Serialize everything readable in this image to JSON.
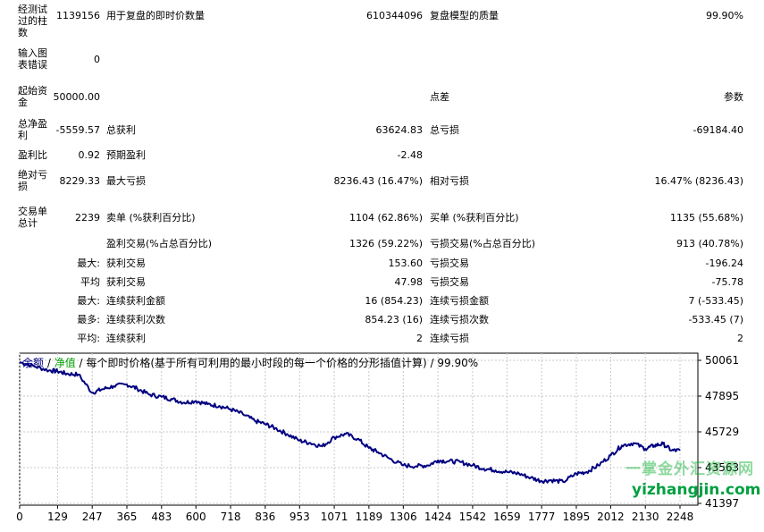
{
  "report": {
    "rows": [
      {
        "label": "经测试过的柱数",
        "value": "1139156",
        "mid_label": "用于复盘的即时价数量",
        "mid_value": "610344096",
        "right_label": "复盘模型的质量",
        "right_value": "99.90%"
      },
      {
        "label": "输入图表错误",
        "value": "0"
      },
      {
        "label": "起始资金",
        "value": "50000.00",
        "right_label": "点差",
        "right_value": "参数"
      },
      {
        "label": "总净盈利",
        "value": "-5559.57",
        "mid_label": "总获利",
        "mid_value": "63624.83",
        "right_label": "总亏损",
        "right_value": "-69184.40"
      },
      {
        "label": "盈利比",
        "value": "0.92",
        "mid_label": "预期盈利",
        "mid_value": "-2.48"
      },
      {
        "label": "绝对亏损",
        "value": "8229.33",
        "mid_label": "最大亏损",
        "mid_value": "8236.43 (16.47%)",
        "right_label": "相对亏损",
        "right_value": "16.47% (8236.43)"
      },
      {
        "label": "交易单总计",
        "value": "2239",
        "mid_label": "卖单 (%获利百分比)",
        "mid_value": "1104 (62.86%)",
        "right_label": "买单 (%获利百分比)",
        "right_value": "1135 (55.68%)"
      },
      {
        "mid_label": "盈利交易(%占总百分比)",
        "mid_value": "1326 (59.22%)",
        "right_label": "亏损交易(%占总百分比)",
        "right_value": "913 (40.78%)"
      },
      {
        "prefix": "最大:",
        "mid_label": "获利交易",
        "mid_value": "153.60",
        "right_label": "亏损交易",
        "right_value": "-196.24"
      },
      {
        "prefix": "平均",
        "mid_label": "获利交易",
        "mid_value": "47.98",
        "right_label": "亏损交易",
        "right_value": "-75.78"
      },
      {
        "prefix": "最大:",
        "mid_label": "连续获利金额",
        "mid_value": "16 (854.23)",
        "right_label": "连续亏损金额",
        "right_value": "7 (-533.45)"
      },
      {
        "prefix": "最多:",
        "mid_label": "连续获利次数",
        "mid_value": "854.23 (16)",
        "right_label": "连续亏损次数",
        "right_value": "-533.45 (7)"
      },
      {
        "prefix": "平均:",
        "mid_label": "连续获利",
        "mid_value": "2",
        "right_label": "连续亏损",
        "right_value": "2"
      }
    ]
  },
  "chart_title": {
    "balance": "余额",
    "slash1": " / ",
    "equity": "净值",
    "rest": " / 每个即时价格(基于所有可利用的最小时段的每一个价格的分形插值计算) / 99.90%"
  },
  "watermark": {
    "cn": "一掌金外汇资源网",
    "url": "yizhangjin.com"
  },
  "chart_data": {
    "type": "line",
    "title": "",
    "x_ticks": [
      0,
      129,
      247,
      365,
      483,
      600,
      718,
      836,
      953,
      1071,
      1189,
      1306,
      1424,
      1542,
      1659,
      1777,
      1895,
      2012,
      2130,
      2248
    ],
    "y_ticks": [
      50061,
      47895,
      45729,
      43563,
      41397
    ],
    "xlim": [
      0,
      2248
    ],
    "ylim": [
      41397,
      50061
    ],
    "grid": true,
    "series": [
      {
        "color": "#000080",
        "x": [
          0,
          50,
          100,
          129,
          160,
          200,
          247,
          280,
          320,
          365,
          400,
          440,
          483,
          520,
          560,
          600,
          640,
          680,
          718,
          760,
          800,
          836,
          870,
          910,
          953,
          990,
          1030,
          1071,
          1110,
          1150,
          1189,
          1220,
          1260,
          1306,
          1350,
          1390,
          1424,
          1460,
          1500,
          1542,
          1580,
          1620,
          1659,
          1700,
          1740,
          1777,
          1810,
          1850,
          1895,
          1930,
          1970,
          2012,
          2050,
          2090,
          2130,
          2160,
          2190,
          2220,
          2248
        ],
        "values": [
          49950,
          49700,
          49450,
          49400,
          49250,
          49200,
          48100,
          48300,
          48500,
          48600,
          48350,
          48000,
          47850,
          47700,
          47500,
          47600,
          47400,
          47300,
          47100,
          46800,
          46400,
          46200,
          45950,
          45600,
          45200,
          45050,
          44850,
          45400,
          45600,
          45300,
          44750,
          44500,
          44100,
          43700,
          43650,
          43700,
          44000,
          43950,
          43900,
          43700,
          43500,
          43400,
          43300,
          43200,
          42950,
          42750,
          42800,
          42700,
          43200,
          43300,
          43700,
          44300,
          44900,
          45050,
          44700,
          44900,
          45000,
          44600,
          44600
        ]
      }
    ]
  }
}
